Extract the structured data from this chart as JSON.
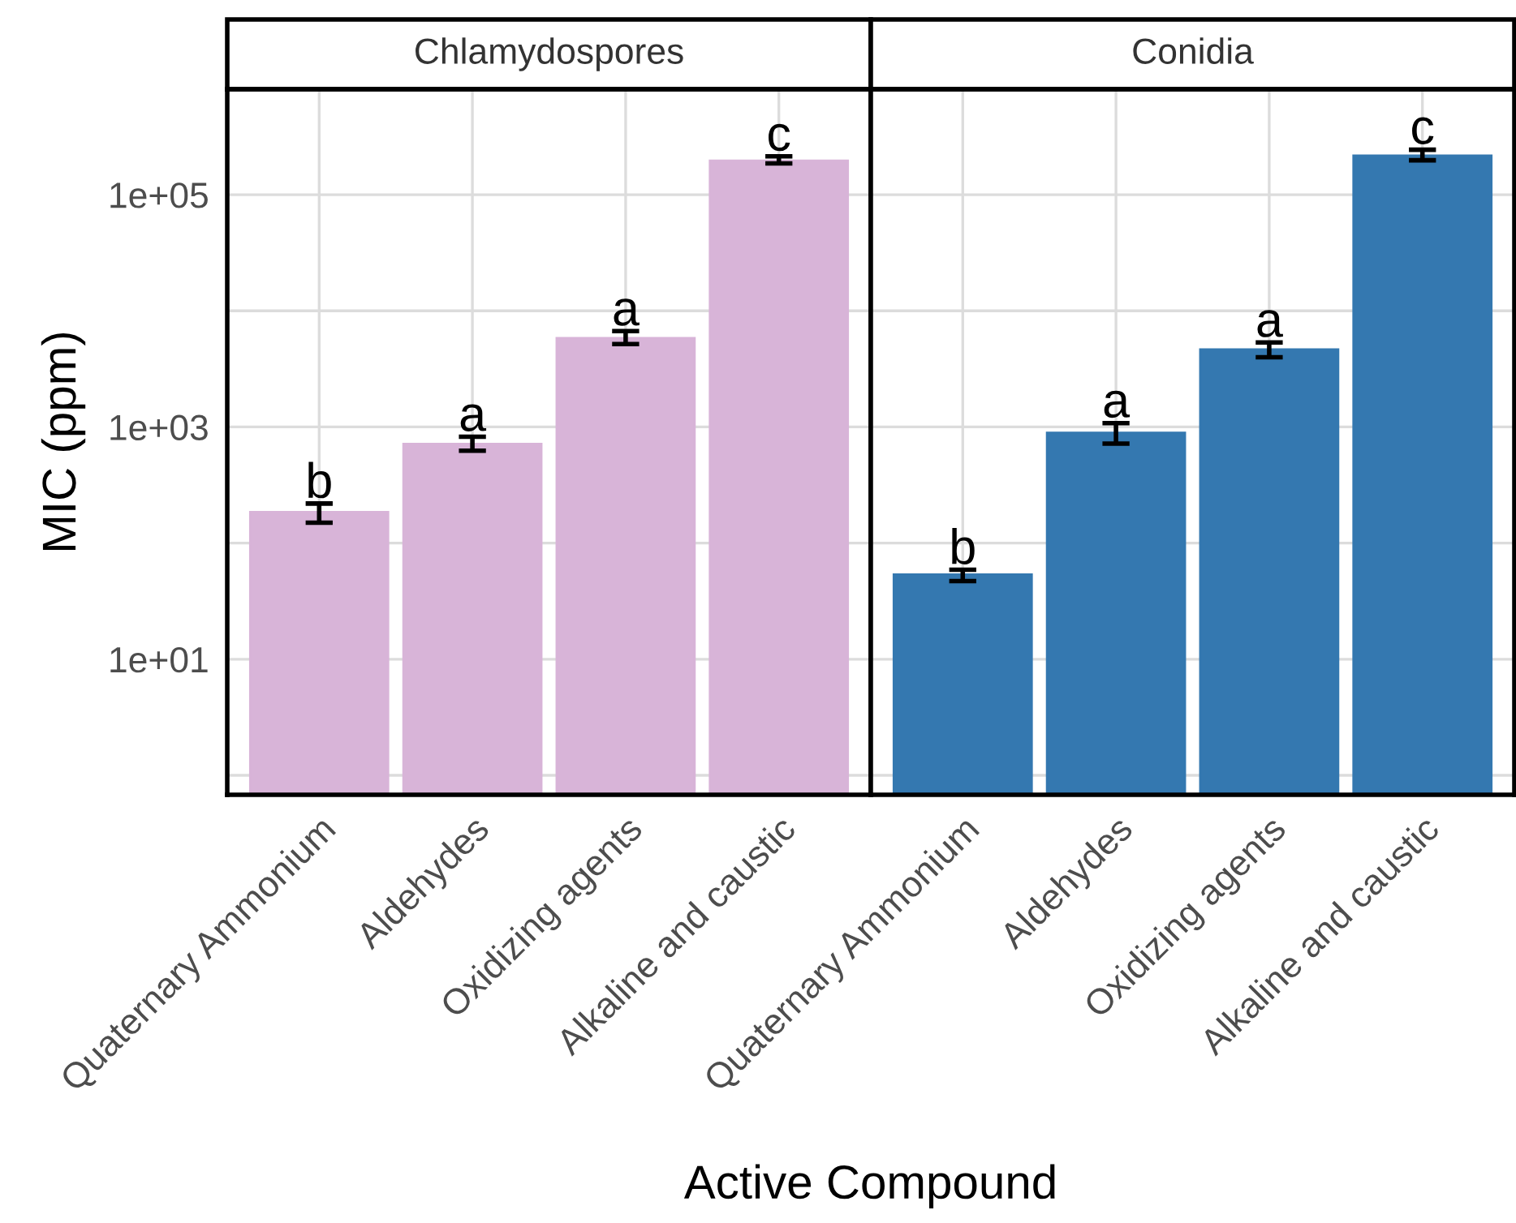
{
  "chart_data": [
    {
      "type": "bar",
      "title": "Chlamydospores",
      "xlabel": "Active Compound",
      "ylabel": "MIC (ppm)",
      "log": true,
      "grid": true,
      "categories": [
        "Quaternary Ammonium",
        "Aldehydes",
        "Oxidizing agents",
        "Alkaline and caustic"
      ],
      "series": [
        {
          "color": "#d8b4d8",
          "values": [
            184,
            714,
            5820,
            196000
          ],
          "errors": [
            [
              150,
              219
            ],
            [
              625,
              825
            ],
            [
              5170,
              6690
            ],
            [
              186000,
              214000
            ]
          ]
        }
      ],
      "ylim": [
        0.68,
        810000
      ],
      "yticks": [
        {
          "value": 1,
          "label": null
        },
        {
          "value": 10,
          "label": "1e+01"
        },
        {
          "value": 100,
          "label": null
        },
        {
          "value": 1000,
          "label": "1e+03"
        },
        {
          "value": 10000,
          "label": null
        },
        {
          "value": 100000,
          "label": "1e+05"
        }
      ],
      "annotations": [
        {
          "text": "b",
          "x": "Quaternary Ammonium",
          "y": 219
        },
        {
          "text": "a",
          "x": "Aldehydes",
          "y": 825
        },
        {
          "text": "a",
          "x": "Oxidizing agents",
          "y": 6690
        },
        {
          "text": "c",
          "x": "Alkaline and caustic",
          "y": 214000
        }
      ]
    },
    {
      "type": "bar",
      "title": "Conidia",
      "log": true,
      "grid": true,
      "tick_labels": "x",
      "categories": [
        "Quaternary Ammonium",
        "Aldehydes",
        "Oxidizing agents",
        "Alkaline and caustic"
      ],
      "series": [
        {
          "color": "#3478b0",
          "values": [
            53,
            890,
            4640,
            217000
          ],
          "errors": [
            [
              47,
              59
            ],
            [
              718,
              1080
            ],
            [
              3980,
              5340
            ],
            [
              198000,
              244000
            ]
          ]
        }
      ],
      "ylim": [
        0.68,
        810000
      ],
      "yticks": [
        {
          "value": 1,
          "label": null
        },
        {
          "value": 10,
          "label": null
        },
        {
          "value": 100,
          "label": null
        },
        {
          "value": 1000,
          "label": null
        },
        {
          "value": 10000,
          "label": null
        },
        {
          "value": 100000,
          "label": null
        }
      ],
      "annotations": [
        {
          "text": "b",
          "x": "Quaternary Ammonium",
          "y": 59
        },
        {
          "text": "a",
          "x": "Aldehydes",
          "y": 1080
        },
        {
          "text": "a",
          "x": "Oxidizing agents",
          "y": 5340
        },
        {
          "text": "c",
          "x": "Alkaline and caustic",
          "y": 244000
        }
      ]
    }
  ]
}
